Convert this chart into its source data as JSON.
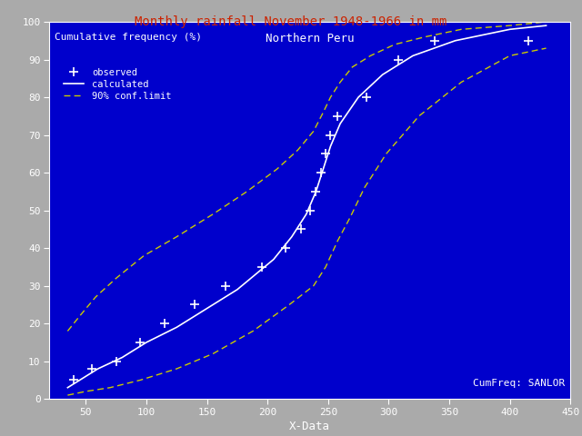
{
  "title": "Monthly rainfall November 1948-1966 in mm",
  "subtitle": "Northern Peru",
  "ylabel_text": "Cumulative frequency (%)",
  "xlabel": "X-Data",
  "watermark": "CumFreq: SANLOR",
  "background_color": "#0000CC",
  "outer_bg": "#AAAAAA",
  "title_color": "#CC2200",
  "text_color": "#FFFFFF",
  "conf_color": "#CCCC00",
  "xlim": [
    20,
    450
  ],
  "ylim": [
    0,
    100
  ],
  "xticks": [
    50,
    100,
    150,
    200,
    250,
    300,
    350,
    400,
    450
  ],
  "yticks": [
    0,
    10,
    20,
    30,
    40,
    50,
    60,
    70,
    80,
    90,
    100
  ],
  "observed_x": [
    40,
    55,
    75,
    95,
    115,
    140,
    165,
    195,
    215,
    228,
    235,
    240,
    244,
    248,
    252,
    258,
    282,
    308,
    338,
    415
  ],
  "observed_y": [
    5,
    8,
    10,
    15,
    20,
    25,
    30,
    35,
    40,
    45,
    50,
    55,
    60,
    65,
    70,
    75,
    80,
    90,
    95,
    95
  ],
  "calc_x": [
    35,
    45,
    60,
    80,
    100,
    125,
    150,
    175,
    205,
    220,
    232,
    240,
    246,
    252,
    260,
    275,
    295,
    320,
    355,
    400,
    430
  ],
  "calc_y": [
    3,
    5,
    8,
    11,
    15,
    19,
    24,
    29,
    37,
    43,
    49,
    55,
    61,
    67,
    73,
    80,
    86,
    91,
    95,
    98,
    99
  ],
  "upper_x": [
    35,
    45,
    58,
    75,
    98,
    125,
    155,
    183,
    208,
    225,
    238,
    246,
    252,
    260,
    270,
    285,
    305,
    330,
    360,
    400,
    430
  ],
  "upper_y": [
    18,
    22,
    27,
    32,
    38,
    43,
    49,
    55,
    61,
    66,
    71,
    76,
    80,
    84,
    88,
    91,
    94,
    96,
    98,
    99,
    100
  ],
  "lower_x": [
    35,
    50,
    70,
    95,
    125,
    155,
    188,
    218,
    238,
    248,
    258,
    268,
    280,
    298,
    325,
    360,
    400,
    430
  ],
  "lower_y": [
    1,
    2,
    3,
    5,
    8,
    12,
    18,
    25,
    30,
    35,
    42,
    48,
    56,
    65,
    75,
    84,
    91,
    93
  ]
}
